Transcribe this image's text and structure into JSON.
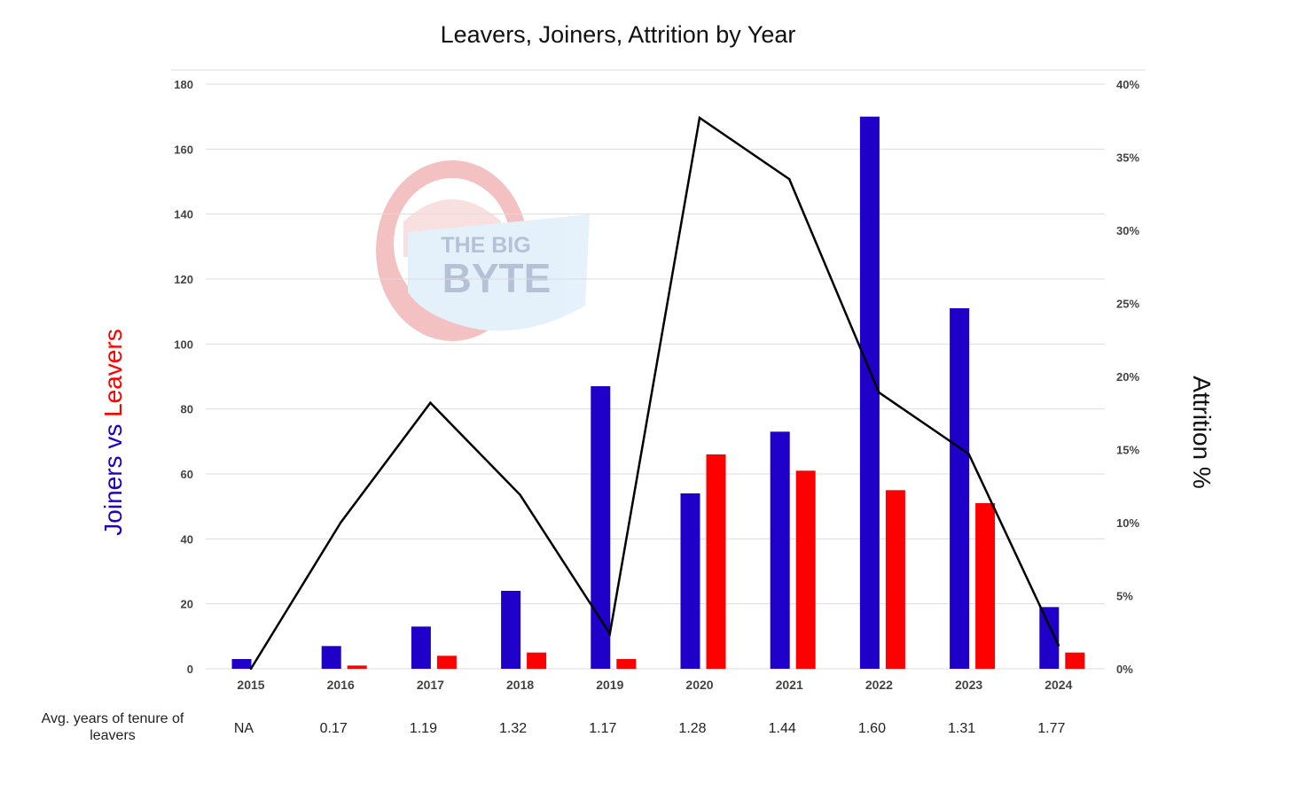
{
  "chart_data": {
    "type": "bar",
    "title": "Leavers, Joiners, Attrition by Year",
    "categories": [
      "2015",
      "2016",
      "2017",
      "2018",
      "2019",
      "2020",
      "2021",
      "2022",
      "2023",
      "2024"
    ],
    "series": [
      {
        "name": "Joiners",
        "axis": "left",
        "kind": "bar",
        "color": "#1f00c8",
        "values": [
          3,
          7,
          13,
          24,
          87,
          54,
          73,
          170,
          111,
          19
        ]
      },
      {
        "name": "Leavers",
        "axis": "left",
        "kind": "bar",
        "color": "#ff0000",
        "values": [
          0,
          1,
          4,
          5,
          3,
          66,
          61,
          55,
          51,
          5
        ]
      },
      {
        "name": "Attrition %",
        "axis": "right",
        "kind": "line",
        "color": "#000000",
        "values": [
          0,
          10,
          18.2,
          11.9,
          2.4,
          37.7,
          33.5,
          18.9,
          14.7,
          1.6
        ]
      }
    ],
    "ylabel_left_parts": [
      {
        "text": "Joiners",
        "color": "#1f00c8"
      },
      {
        "text": " vs ",
        "color": "#1f00c8"
      },
      {
        "text": "Leavers",
        "color": "#ff0000"
      }
    ],
    "ylabel_right": "Attrition %",
    "ylim_left": [
      0,
      180
    ],
    "yticks_left": [
      "0",
      "20",
      "40",
      "60",
      "80",
      "100",
      "120",
      "140",
      "160",
      "180"
    ],
    "ylim_right": [
      0,
      40
    ],
    "yticks_right": [
      "0%",
      "5%",
      "10%",
      "15%",
      "20%",
      "25%",
      "30%",
      "35%",
      "40%"
    ],
    "grid": true,
    "tenure_row": {
      "label": "Avg. years of tenure of leavers",
      "label_lines": [
        "Avg. years of tenure of",
        "leavers"
      ],
      "values": [
        "NA",
        "0.17",
        "1.19",
        "1.32",
        "1.17",
        "1.28",
        "1.44",
        "1.60",
        "1.31",
        "1.77"
      ]
    },
    "watermark": {
      "line1": "THE BIG",
      "line2": "BYTE"
    }
  }
}
